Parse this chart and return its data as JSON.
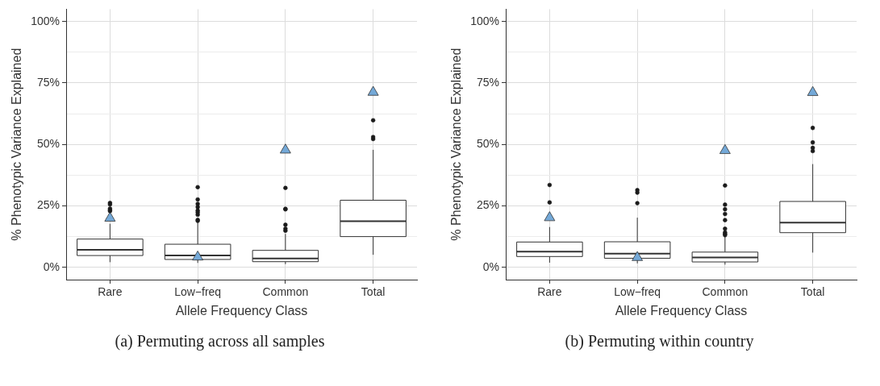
{
  "chart_data": [
    {
      "type": "box",
      "xlabel": "Allele Frequency Class",
      "ylabel": "% Phenotypic Variance Explained",
      "categories": [
        "Rare",
        "Low−freq",
        "Common",
        "Total"
      ],
      "boxes": [
        {
          "low": 2.1,
          "q1": 4.8,
          "median": 7.1,
          "q3": 11.5,
          "high": 17.7,
          "outliers": [
            26.2,
            25.6,
            23.9,
            23.3,
            22.9
          ]
        },
        {
          "low": 1.8,
          "q1": 3.2,
          "median": 4.8,
          "q3": 9.4,
          "high": 18.2,
          "outliers": [
            32.6,
            27.6,
            25.8,
            24.5,
            23.1,
            22.3,
            21.4,
            19.3,
            18.9
          ]
        },
        {
          "low": 1.3,
          "q1": 2.3,
          "median": 3.6,
          "q3": 6.9,
          "high": 13.6,
          "outliers": [
            32.3,
            23.8,
            23.6,
            17.3,
            15.7,
            14.9
          ]
        },
        {
          "low": 5.1,
          "q1": 12.5,
          "median": 18.8,
          "q3": 27.3,
          "high": 47.8,
          "outliers": [
            59.8,
            53.0,
            52.2
          ]
        }
      ],
      "series": [
        {
          "type": "scatter",
          "color": "#74a9d8",
          "marker": "triangle",
          "x": [
            "Rare",
            "Low−freq",
            "Common",
            "Total"
          ],
          "values": [
            20,
            4.2,
            47.7,
            71.2
          ]
        }
      ],
      "ylim": [
        -5,
        105
      ],
      "yticks": [
        {
          "value": 0,
          "label": "0%"
        },
        {
          "value": 12.5,
          "label": null
        },
        {
          "value": 25,
          "label": "25%"
        },
        {
          "value": 37.5,
          "label": null
        },
        {
          "value": 50,
          "label": "50%"
        },
        {
          "value": 62.5,
          "label": null
        },
        {
          "value": 75,
          "label": "75%"
        },
        {
          "value": 87.5,
          "label": null
        },
        {
          "value": 100,
          "label": "100%"
        }
      ],
      "grid": true,
      "legend": false,
      "annotations": [
        "(a) Permuting across all samples"
      ]
    },
    {
      "type": "box",
      "xlabel": "Allele Frequency Class",
      "ylabel": "% Phenotypic Variance Explained",
      "categories": [
        "Rare",
        "Low−freq",
        "Common",
        "Total"
      ],
      "boxes": [
        {
          "low": 1.9,
          "q1": 4.4,
          "median": 6.4,
          "q3": 10.3,
          "high": 16.4,
          "outliers": [
            33.5,
            26.4
          ]
        },
        {
          "low": 1.6,
          "q1": 3.7,
          "median": 5.6,
          "q3": 10.4,
          "high": 20.2,
          "outliers": [
            31.4,
            30.4,
            26.1
          ]
        },
        {
          "low": 1.1,
          "q1": 2.2,
          "median": 4.0,
          "q3": 6.2,
          "high": 12.5,
          "outliers": [
            33.3,
            25.5,
            23.6,
            21.7,
            19.2,
            15.7,
            14.2,
            13.6,
            13.1
          ]
        },
        {
          "low": 6.0,
          "q1": 14.1,
          "median": 18.2,
          "q3": 26.8,
          "high": 42.0,
          "outliers": [
            56.7,
            50.8,
            48.6,
            47.3
          ]
        }
      ],
      "series": [
        {
          "type": "scatter",
          "color": "#74a9d8",
          "marker": "triangle",
          "x": [
            "Rare",
            "Low−freq",
            "Common",
            "Total"
          ],
          "values": [
            20.2,
            4.0,
            47.5,
            71.1
          ]
        }
      ],
      "ylim": [
        -5,
        105
      ],
      "yticks": [
        {
          "value": 0,
          "label": "0%"
        },
        {
          "value": 12.5,
          "label": null
        },
        {
          "value": 25,
          "label": "25%"
        },
        {
          "value": 37.5,
          "label": null
        },
        {
          "value": 50,
          "label": "50%"
        },
        {
          "value": 62.5,
          "label": null
        },
        {
          "value": 75,
          "label": "75%"
        },
        {
          "value": 87.5,
          "label": null
        },
        {
          "value": 100,
          "label": "100%"
        }
      ],
      "grid": true,
      "legend": false,
      "annotations": [
        "(b) Permuting within country"
      ]
    }
  ]
}
